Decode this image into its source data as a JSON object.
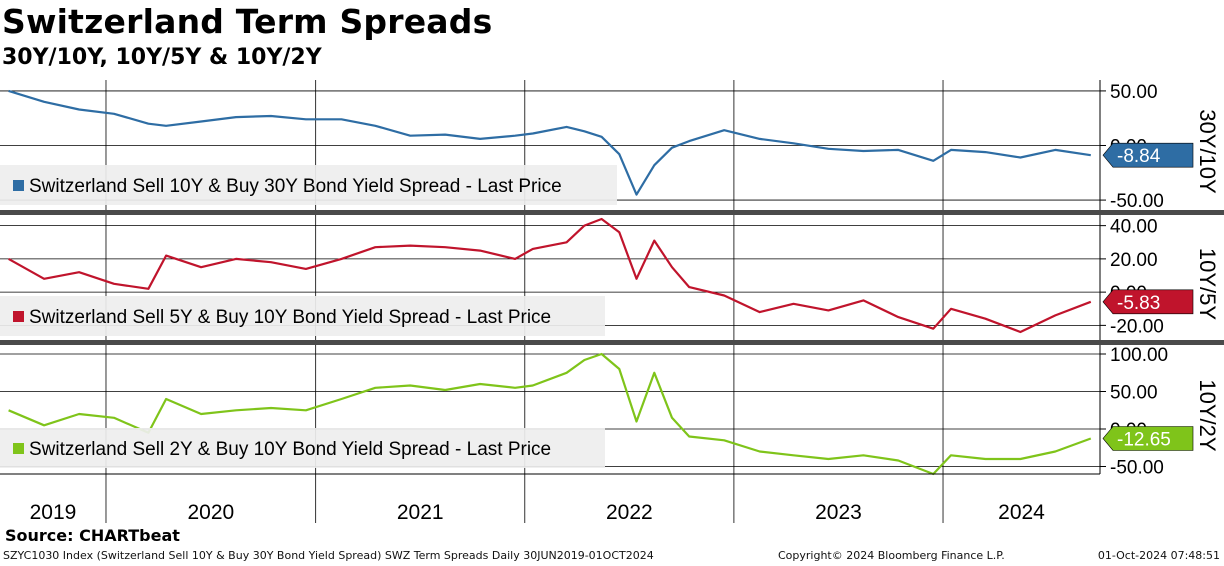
{
  "title": "Switzerland Term Spreads",
  "subtitle": "30Y/10Y, 10Y/5Y & 10Y/2Y",
  "source": "Source: CHARTbeat",
  "footer": {
    "left": "SZYC1030 Index (Switzerland Sell 10Y & Buy 30Y Bond Yield Spread) SWZ Term Spreads  Daily 30JUN2019-01OCT2024",
    "center": "Copyright© 2024 Bloomberg Finance L.P.",
    "right": "01-Oct-2024 07:48:51"
  },
  "colors": {
    "s1": "#2e6da4",
    "s2": "#c0142c",
    "s3": "#7fc41a",
    "grid": "#000000"
  },
  "chart_data": [
    {
      "type": "line",
      "axis_label": "30Y/10Y",
      "legend": "Switzerland Sell 10Y & Buy 30Y Bond Yield Spread - Last Price",
      "last_value": -8.84,
      "last_label": "-8.84",
      "ylim": [
        -60,
        60
      ],
      "yticks": [
        50,
        0,
        -50
      ],
      "ytick_labels": [
        "50.00",
        "0.00",
        "-50.00"
      ],
      "x": [
        "2019-07",
        "2019-09",
        "2019-11",
        "2020-01",
        "2020-03",
        "2020-04",
        "2020-06",
        "2020-08",
        "2020-10",
        "2020-12",
        "2021-02",
        "2021-04",
        "2021-06",
        "2021-08",
        "2021-10",
        "2021-12",
        "2022-01",
        "2022-03",
        "2022-04",
        "2022-05",
        "2022-06",
        "2022-07",
        "2022-08",
        "2022-09",
        "2022-10",
        "2022-12",
        "2023-02",
        "2023-04",
        "2023-06",
        "2023-08",
        "2023-10",
        "2023-12",
        "2024-01",
        "2024-03",
        "2024-05",
        "2024-07",
        "2024-09"
      ],
      "values": [
        50,
        40,
        33,
        29,
        20,
        18,
        22,
        26,
        27,
        24,
        24,
        18,
        9,
        10,
        6,
        9,
        11,
        17,
        13,
        8,
        -8,
        -45,
        -18,
        -2,
        4,
        14,
        6,
        2,
        -3,
        -5,
        -4,
        -14,
        -4,
        -6,
        -11,
        -4,
        -8.84
      ]
    },
    {
      "type": "line",
      "axis_label": "10Y/5Y",
      "legend": "Switzerland Sell 5Y & Buy 10Y Bond Yield Spread - Last Price",
      "last_value": -5.83,
      "last_label": "-5.83",
      "ylim": [
        -30,
        47
      ],
      "yticks": [
        40,
        20,
        0,
        -20
      ],
      "ytick_labels": [
        "40.00",
        "20.00",
        "0.00",
        "-20.00"
      ],
      "x": [
        "2019-07",
        "2019-09",
        "2019-11",
        "2020-01",
        "2020-03",
        "2020-04",
        "2020-06",
        "2020-08",
        "2020-10",
        "2020-12",
        "2021-02",
        "2021-04",
        "2021-06",
        "2021-08",
        "2021-10",
        "2021-12",
        "2022-01",
        "2022-03",
        "2022-04",
        "2022-05",
        "2022-06",
        "2022-07",
        "2022-08",
        "2022-09",
        "2022-10",
        "2022-12",
        "2023-02",
        "2023-04",
        "2023-06",
        "2023-08",
        "2023-10",
        "2023-12",
        "2024-01",
        "2024-03",
        "2024-05",
        "2024-07",
        "2024-09"
      ],
      "values": [
        20,
        8,
        12,
        5,
        2,
        22,
        15,
        20,
        18,
        14,
        20,
        27,
        28,
        27,
        25,
        20,
        26,
        30,
        40,
        44,
        36,
        8,
        31,
        15,
        3,
        -2,
        -12,
        -7,
        -11,
        -5,
        -15,
        -22,
        -10,
        -16,
        -24,
        -14,
        -5.83
      ]
    },
    {
      "type": "line",
      "axis_label": "10Y/2Y",
      "legend": "Switzerland Sell 2Y & Buy 10Y Bond Yield Spread - Last Price",
      "last_value": -12.65,
      "last_label": "-12.65",
      "ylim": [
        -60,
        112
      ],
      "yticks": [
        100,
        50,
        0,
        -50
      ],
      "ytick_labels": [
        "100.00",
        "50.00",
        "0.00",
        "-50.00"
      ],
      "x": [
        "2019-07",
        "2019-09",
        "2019-11",
        "2020-01",
        "2020-03",
        "2020-04",
        "2020-06",
        "2020-08",
        "2020-10",
        "2020-12",
        "2021-02",
        "2021-04",
        "2021-06",
        "2021-08",
        "2021-10",
        "2021-12",
        "2022-01",
        "2022-03",
        "2022-04",
        "2022-05",
        "2022-06",
        "2022-07",
        "2022-08",
        "2022-09",
        "2022-10",
        "2022-12",
        "2023-02",
        "2023-04",
        "2023-06",
        "2023-08",
        "2023-10",
        "2023-12",
        "2024-01",
        "2024-03",
        "2024-05",
        "2024-07",
        "2024-09"
      ],
      "values": [
        25,
        5,
        20,
        15,
        -5,
        40,
        20,
        25,
        28,
        25,
        40,
        55,
        58,
        52,
        60,
        55,
        58,
        75,
        92,
        100,
        80,
        10,
        75,
        15,
        -10,
        -15,
        -30,
        -35,
        -40,
        -35,
        -42,
        -60,
        -35,
        -40,
        -40,
        -30,
        -12.65
      ]
    }
  ],
  "x_axis": {
    "labels": [
      "2019",
      "2020",
      "2021",
      "2022",
      "2023",
      "2024"
    ],
    "start": "2019-06-30",
    "end": "2024-10-01",
    "year_ticks": [
      "2020-01-01",
      "2021-01-01",
      "2022-01-01",
      "2023-01-01",
      "2024-01-01"
    ]
  }
}
